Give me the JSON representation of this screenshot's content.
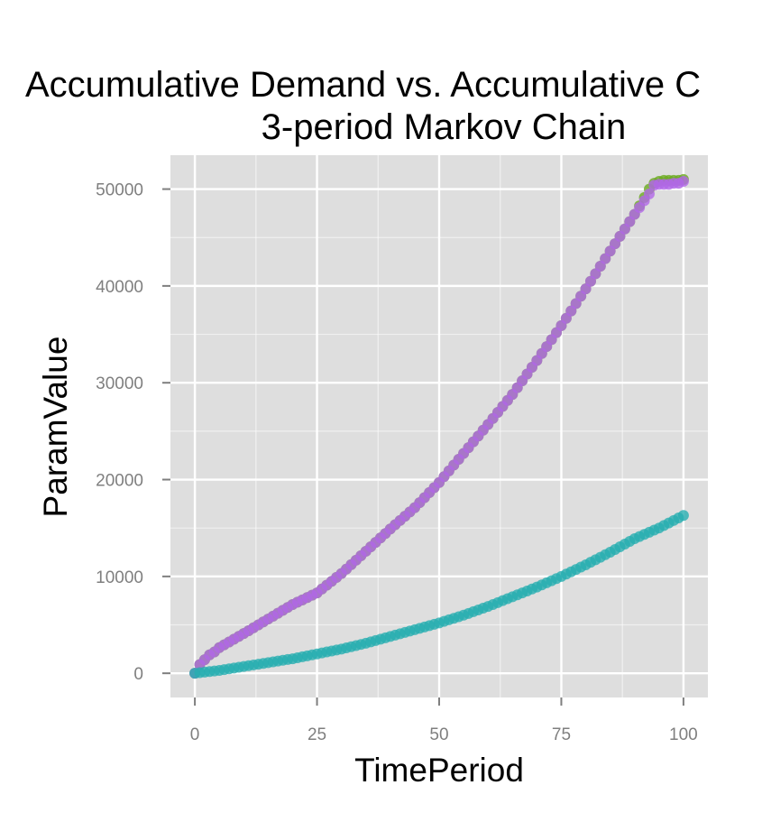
{
  "chart_data": {
    "type": "scatter",
    "title_line1": "Accumulative Demand vs. Accumulative C",
    "title_line2": "3-period Markov Chain",
    "xlabel": "TimePeriod",
    "ylabel": "ParamValue",
    "xlim": [
      -5,
      105
    ],
    "ylim": [
      -2500,
      53500
    ],
    "x_ticks": [
      0,
      25,
      50,
      75,
      100
    ],
    "x_tick_labels": [
      "0",
      "25",
      "50",
      "75",
      "100"
    ],
    "y_ticks": [
      0,
      10000,
      20000,
      30000,
      40000,
      50000
    ],
    "y_tick_labels": [
      "0",
      "10000",
      "20000",
      "30000",
      "40000",
      "50000"
    ],
    "grid": true,
    "legend": "none",
    "colors": {
      "panel": "#dedede",
      "grid": "#ffffff",
      "tick": "#7f7f7f"
    },
    "series": [
      {
        "color": "#6aaa1e",
        "x": [
          0,
          1,
          2,
          3,
          4,
          5,
          10,
          15,
          20,
          25,
          30,
          35,
          40,
          45,
          50,
          55,
          60,
          65,
          70,
          75,
          80,
          85,
          90,
          93,
          94,
          95,
          96,
          97,
          98,
          99,
          100
        ],
        "y": [
          0,
          900,
          1400,
          1900,
          2200,
          2650,
          4100,
          5600,
          7100,
          8300,
          10300,
          12600,
          14900,
          17100,
          19700,
          22700,
          25700,
          28800,
          32300,
          35900,
          39700,
          43600,
          47400,
          50000,
          50600,
          50800,
          50900,
          50900,
          50900,
          50900,
          51000
        ]
      },
      {
        "color": "#b266e8",
        "x": [
          0,
          1,
          2,
          3,
          4,
          5,
          10,
          15,
          20,
          25,
          30,
          35,
          40,
          45,
          50,
          55,
          60,
          65,
          70,
          75,
          80,
          85,
          90,
          93,
          94,
          95,
          96,
          97,
          98,
          99,
          100
        ],
        "y": [
          0,
          900,
          1400,
          1900,
          2200,
          2650,
          4100,
          5600,
          7100,
          8300,
          10300,
          12600,
          14900,
          17100,
          19700,
          22700,
          25700,
          28800,
          32300,
          35900,
          39700,
          43600,
          47400,
          49500,
          50400,
          50500,
          50500,
          50500,
          50600,
          50600,
          50800
        ]
      },
      {
        "color": "#27aeb0",
        "x": [
          0,
          5,
          10,
          15,
          20,
          25,
          30,
          35,
          40,
          45,
          50,
          55,
          60,
          65,
          70,
          75,
          80,
          85,
          90,
          95,
          100
        ],
        "y": [
          0,
          300,
          700,
          1100,
          1500,
          2000,
          2500,
          3100,
          3800,
          4500,
          5200,
          6000,
          6900,
          7900,
          8900,
          10000,
          11200,
          12500,
          13900,
          15000,
          16300
        ]
      }
    ]
  }
}
